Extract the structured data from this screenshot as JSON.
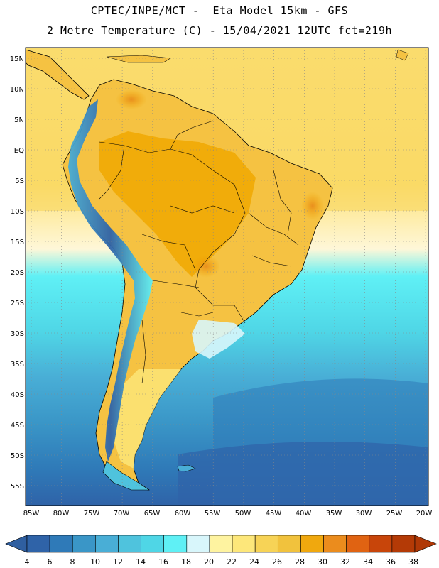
{
  "header": {
    "line1": "CPTEC/INPE/MCT -  Eta Model 15km - GFS",
    "line2": "2 Metre Temperature (C) - 15/04/2021 12UTC fct=219h"
  },
  "map": {
    "lat_labels": [
      "15N",
      "10N",
      "5N",
      "EQ",
      "5S",
      "10S",
      "15S",
      "20S",
      "25S",
      "30S",
      "35S",
      "40S",
      "45S",
      "50S",
      "55S"
    ],
    "lon_labels": [
      "85W",
      "80W",
      "75W",
      "70W",
      "65W",
      "60W",
      "55W",
      "50W",
      "45W",
      "40W",
      "35W",
      "30W",
      "25W",
      "20W"
    ],
    "colors": {
      "land_hot": "#f0a400",
      "land_warm": "#f5c242",
      "ocean_warm": "#fde68a",
      "ocean_cold": "#2d6fb8",
      "coastline": "#000000"
    }
  },
  "colorbar": {
    "labels": [
      "4",
      "6",
      "8",
      "10",
      "12",
      "14",
      "16",
      "18",
      "20",
      "22",
      "24",
      "26",
      "28",
      "30",
      "32",
      "34",
      "36",
      "38"
    ],
    "colors": [
      "#2f63a8",
      "#2f7ab8",
      "#3a96c7",
      "#49aed6",
      "#4fc3dd",
      "#4fd6e6",
      "#5ff0f5",
      "#d8f6fb",
      "#fef9e3",
      "#fef3a0",
      "#fde77a",
      "#f7d356",
      "#f1c23d",
      "#f0a80e",
      "#eb8c1d",
      "#e06312",
      "#c8450a",
      "#b43a06"
    ],
    "start_color": "#2f5fa0",
    "end_color": "#b03806"
  }
}
